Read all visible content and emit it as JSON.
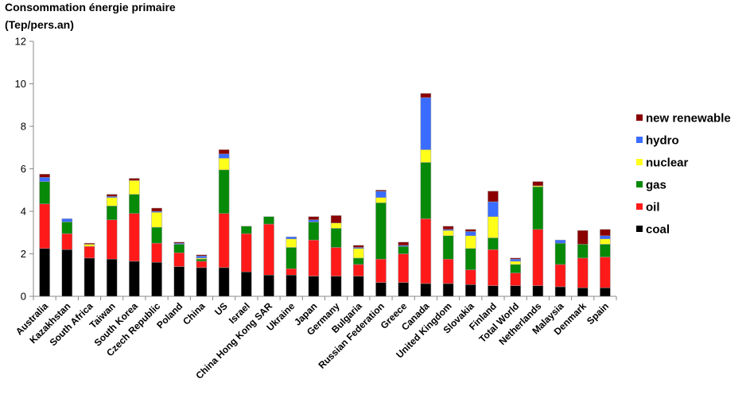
{
  "chart_data": {
    "type": "bar",
    "stacked": true,
    "title_lines": [
      "Consommation énergie primaire",
      "(Tep/pers.an)"
    ],
    "xlabel": "",
    "ylabel": "",
    "ylim": [
      0,
      12
    ],
    "yticks": [
      0,
      2,
      4,
      6,
      8,
      10,
      12
    ],
    "grid": false,
    "legend_position": "right",
    "legend_order": [
      "new renewable",
      "hydro",
      "nuclear",
      "gas",
      "oil",
      "coal"
    ],
    "colors": {
      "coal": "#000000",
      "oil": "#ff1a1a",
      "gas": "#078a07",
      "nuclear": "#ffff1a",
      "hydro": "#3a6dff",
      "new renewable": "#8b0000"
    },
    "categories": [
      "Australia",
      "Kazakhstan",
      "South Africa",
      "Taiwan",
      "South Korea",
      "Czech Republic",
      "Poland",
      "China",
      "US",
      "Israel",
      "China Hong Kong SAR",
      "Ukraine",
      "Japan",
      "Germany",
      "Bulgaria",
      "Russian Federation",
      "Greece",
      "Canada",
      "United Kingdom",
      "Slovakia",
      "Finland",
      "Total World",
      "Netherlands",
      "Malaysia",
      "Denmark",
      "Spain"
    ],
    "series": [
      {
        "name": "coal",
        "values": [
          2.25,
          2.2,
          1.8,
          1.75,
          1.65,
          1.6,
          1.4,
          1.35,
          1.35,
          1.15,
          1.0,
          1.0,
          0.95,
          0.95,
          0.95,
          0.65,
          0.65,
          0.6,
          0.6,
          0.55,
          0.5,
          0.5,
          0.5,
          0.45,
          0.4,
          0.4
        ]
      },
      {
        "name": "oil",
        "values": [
          2.1,
          0.75,
          0.55,
          1.85,
          2.25,
          0.9,
          0.65,
          0.3,
          2.55,
          1.8,
          2.4,
          0.3,
          1.7,
          1.35,
          0.55,
          1.1,
          1.35,
          3.05,
          1.15,
          0.7,
          1.7,
          0.6,
          2.65,
          1.05,
          1.4,
          1.45
        ]
      },
      {
        "name": "gas",
        "values": [
          1.05,
          0.55,
          0.0,
          0.65,
          0.9,
          0.75,
          0.4,
          0.1,
          2.05,
          0.35,
          0.35,
          1.0,
          0.85,
          0.9,
          0.3,
          2.65,
          0.35,
          2.65,
          1.1,
          1.0,
          0.55,
          0.4,
          2.0,
          1.0,
          0.65,
          0.6
        ]
      },
      {
        "name": "nuclear",
        "values": [
          0.0,
          0.0,
          0.1,
          0.4,
          0.65,
          0.7,
          0.0,
          0.05,
          0.55,
          0.0,
          0.0,
          0.4,
          0.0,
          0.25,
          0.45,
          0.25,
          0.0,
          0.6,
          0.25,
          0.6,
          1.0,
          0.15,
          0.05,
          0.0,
          0.0,
          0.25
        ]
      },
      {
        "name": "hydro",
        "values": [
          0.2,
          0.15,
          0.0,
          0.05,
          0.0,
          0.05,
          0.05,
          0.1,
          0.2,
          0.0,
          0.0,
          0.1,
          0.1,
          0.0,
          0.05,
          0.3,
          0.05,
          2.45,
          0.05,
          0.2,
          0.7,
          0.1,
          0.0,
          0.15,
          0.0,
          0.15
        ]
      },
      {
        "name": "new renewable",
        "values": [
          0.15,
          0.0,
          0.05,
          0.1,
          0.1,
          0.15,
          0.05,
          0.05,
          0.2,
          0.0,
          0.0,
          0.0,
          0.15,
          0.35,
          0.1,
          0.05,
          0.15,
          0.2,
          0.15,
          0.1,
          0.5,
          0.05,
          0.2,
          0.0,
          0.65,
          0.3
        ]
      }
    ]
  }
}
